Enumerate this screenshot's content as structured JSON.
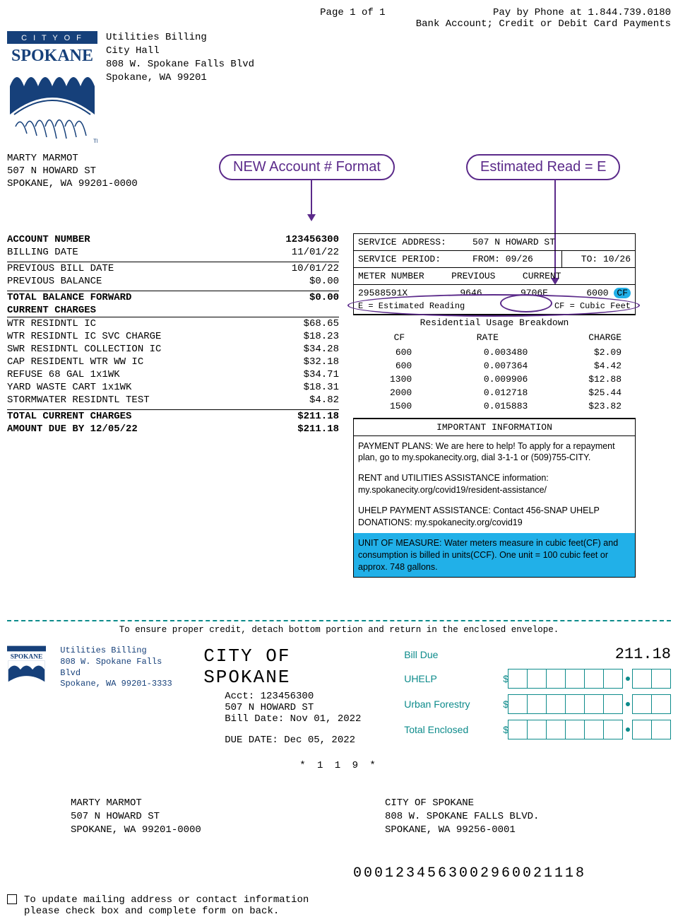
{
  "header": {
    "page_indicator": "Page 1 of 1",
    "pay_phone": "Pay by Phone at 1.844.739.0180",
    "pay_methods": "Bank Account; Credit or Debit Card Payments"
  },
  "org": {
    "dept": "Utilities Billing",
    "line2": "City Hall",
    "street": "808 W. Spokane Falls Blvd",
    "citystate": "Spokane, WA 99201"
  },
  "customer": {
    "name": "MARTY MARMOT",
    "street": "507 N HOWARD ST",
    "citystate": "SPOKANE, WA 99201-0000"
  },
  "callouts": {
    "new_acct": "NEW Account # Format",
    "est_read": "Estimated Read = E"
  },
  "account": {
    "acct_label": "ACCOUNT NUMBER",
    "acct_value": "123456300",
    "billing_date_label": "BILLING DATE",
    "billing_date": "11/01/22",
    "prev_bill_date_label": "PREVIOUS BILL DATE",
    "prev_bill_date": "10/01/22",
    "prev_balance_label": "PREVIOUS BALANCE",
    "prev_balance": "$0.00",
    "balance_fwd_label": "TOTAL BALANCE FORWARD",
    "balance_fwd": "$0.00",
    "current_charges_header": "CURRENT CHARGES",
    "charges": [
      {
        "label": "WTR RESIDNTL IC",
        "amount": "$68.65"
      },
      {
        "label": "WTR RESIDNTL IC SVC CHARGE",
        "amount": "$18.23"
      },
      {
        "label": "SWR RESIDNTL COLLECTION IC",
        "amount": "$34.28"
      },
      {
        "label": "CAP RESIDENTL WTR WW IC",
        "amount": "$32.18"
      },
      {
        "label": "REFUSE 68 GAL 1x1WK",
        "amount": "$34.71"
      },
      {
        "label": "YARD WASTE CART 1x1WK",
        "amount": "$18.31"
      },
      {
        "label": "STORMWATER RESIDNTL TEST",
        "amount": "$4.82"
      }
    ],
    "total_current_label": "TOTAL CURRENT CHARGES",
    "total_current": "$211.18",
    "amount_due_label": "AMOUNT DUE BY 12/05/22",
    "amount_due": "$211.18"
  },
  "service": {
    "addr_label": "SERVICE ADDRESS:",
    "addr": "507 N HOWARD ST",
    "period_label": "SERVICE PERIOD:",
    "from_label": "FROM: 09/26",
    "to_label": "TO: 10/26",
    "meter_hdr": "METER NUMBER",
    "prev_hdr": "PREVIOUS",
    "curr_hdr": "CURRENT",
    "meter_no": "29588591X",
    "prev_read": "9646",
    "curr_read": "9706E",
    "qty": "6000",
    "unit": "CF",
    "est_note": "E = Estimated Reading",
    "cf_note": "CF = Cubic Feet",
    "usage_hdr": "Residential Usage Breakdown",
    "col_cf": "CF",
    "col_rate": "RATE",
    "col_charge": "CHARGE",
    "usage": [
      {
        "cf": "600",
        "rate": "0.003480",
        "charge": "$2.09"
      },
      {
        "cf": "600",
        "rate": "0.007364",
        "charge": "$4.42"
      },
      {
        "cf": "1300",
        "rate": "0.009906",
        "charge": "$12.88"
      },
      {
        "cf": "2000",
        "rate": "0.012718",
        "charge": "$25.44"
      },
      {
        "cf": "1500",
        "rate": "0.015883",
        "charge": "$23.82"
      }
    ],
    "important_hdr": "IMPORTANT INFORMATION",
    "info1": "PAYMENT PLANS: We are here to help! To apply for a repayment plan, go to my.spokanecity.org, dial 3-1-1 or (509)755-CITY.",
    "info2": "RENT and UTILITIES ASSISTANCE information: my.spokanecity.org/covid19/resident-assistance/",
    "info3": "UHELP PAYMENT ASSISTANCE: Contact 456-SNAP UHELP DONATIONS: my.spokanecity.org/covid19",
    "info4": "UNIT OF MEASURE: Water meters measure in cubic feet(CF) and consumption is billed in units(CCF). One unit = 100 cubic feet or approx. 748 gallons."
  },
  "detach": {
    "text": "To ensure proper credit, detach bottom portion and return in the enclosed envelope."
  },
  "stub": {
    "org_dept": "Utilities Billing",
    "org_street": "808 W. Spokane Falls Blvd",
    "org_city": "Spokane, WA 99201-3333",
    "title": "CITY OF SPOKANE",
    "acct_line": "Acct: 123456300",
    "svc_addr": "507 N HOWARD ST",
    "bill_date": "Bill Date: Nov 01, 2022",
    "due_date": "DUE DATE: Dec 05, 2022",
    "bill_due_label": "Bill Due",
    "bill_due_amt": "211.18",
    "uhelp_label": "UHELP",
    "forestry_label": "Urban Forestry",
    "total_label": "Total Enclosed",
    "code_small": "* 1 1 9 *",
    "mail_from_name": "MARTY MARMOT",
    "mail_from_street": "507 N HOWARD ST",
    "mail_from_city": "SPOKANE, WA 99201-0000",
    "mail_to_name": "CITY OF SPOKANE",
    "mail_to_street": "808 W. SPOKANE FALLS BLVD.",
    "mail_to_city": "SPOKANE, WA 99256-0001",
    "barcode": "0001234563002960021118",
    "update_text": "To update mailing address or contact information please check box and complete form on back."
  },
  "colors": {
    "purple": "#5b2a8a",
    "teal": "#0d8b8b",
    "blue_hl": "#21b0e8",
    "logo_blue": "#16407a"
  }
}
